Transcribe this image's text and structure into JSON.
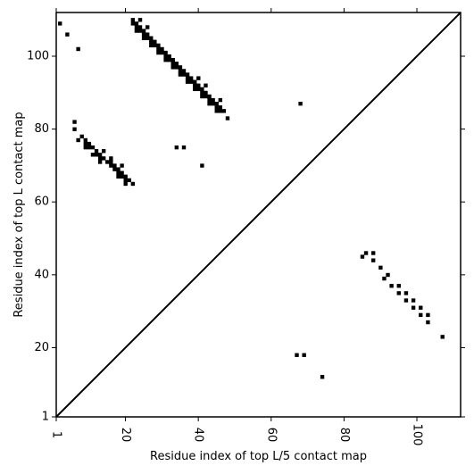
{
  "chart_data": {
    "type": "heatmap",
    "xlabel": "Residue index of top L/5 contact map",
    "ylabel": "Residue index of top L contact map",
    "xlim": [
      1,
      112
    ],
    "ylim": [
      1,
      112
    ],
    "xticks": [
      1,
      20,
      40,
      60,
      80,
      100
    ],
    "yticks": [
      1,
      20,
      40,
      60,
      80,
      100
    ],
    "diagonal": true,
    "upper_cells": [
      [
        2,
        109
      ],
      [
        4,
        106
      ],
      [
        7,
        102
      ],
      [
        22,
        110
      ],
      [
        22,
        109
      ],
      [
        23,
        109
      ],
      [
        23,
        108
      ],
      [
        24,
        110
      ],
      [
        24,
        108
      ],
      [
        24,
        107
      ],
      [
        23,
        107
      ],
      [
        25,
        107
      ],
      [
        25,
        106
      ],
      [
        26,
        108
      ],
      [
        26,
        106
      ],
      [
        25,
        105
      ],
      [
        26,
        105
      ],
      [
        27,
        105
      ],
      [
        27,
        104
      ],
      [
        28,
        104
      ],
      [
        27,
        103
      ],
      [
        28,
        103
      ],
      [
        29,
        103
      ],
      [
        29,
        102
      ],
      [
        30,
        102
      ],
      [
        29,
        101
      ],
      [
        30,
        101
      ],
      [
        31,
        101
      ],
      [
        31,
        100
      ],
      [
        32,
        100
      ],
      [
        31,
        99
      ],
      [
        32,
        99
      ],
      [
        33,
        99
      ],
      [
        33,
        98
      ],
      [
        34,
        98
      ],
      [
        33,
        97
      ],
      [
        34,
        97
      ],
      [
        35,
        97
      ],
      [
        35,
        96
      ],
      [
        36,
        96
      ],
      [
        35,
        95
      ],
      [
        36,
        95
      ],
      [
        37,
        95
      ],
      [
        37,
        94
      ],
      [
        38,
        94
      ],
      [
        37,
        93
      ],
      [
        38,
        93
      ],
      [
        39,
        93
      ],
      [
        39,
        92
      ],
      [
        40,
        92
      ],
      [
        39,
        91
      ],
      [
        40,
        91
      ],
      [
        40,
        94
      ],
      [
        41,
        91
      ],
      [
        41,
        90
      ],
      [
        42,
        90
      ],
      [
        41,
        89
      ],
      [
        42,
        89
      ],
      [
        42,
        92
      ],
      [
        43,
        89
      ],
      [
        43,
        88
      ],
      [
        44,
        88
      ],
      [
        43,
        87
      ],
      [
        44,
        87
      ],
      [
        45,
        87
      ],
      [
        45,
        86
      ],
      [
        46,
        86
      ],
      [
        45,
        85
      ],
      [
        46,
        85
      ],
      [
        46,
        88
      ],
      [
        47,
        85
      ],
      [
        48,
        83
      ],
      [
        68,
        87
      ],
      [
        34,
        75
      ],
      [
        36,
        75
      ],
      [
        41,
        70
      ],
      [
        6,
        82
      ],
      [
        6,
        80
      ],
      [
        7,
        77
      ],
      [
        8,
        78
      ],
      [
        9,
        77
      ],
      [
        9,
        76
      ],
      [
        9,
        75
      ],
      [
        10,
        76
      ],
      [
        10,
        75
      ],
      [
        11,
        75
      ],
      [
        11,
        73
      ],
      [
        12,
        74
      ],
      [
        12,
        73
      ],
      [
        13,
        73
      ],
      [
        13,
        72
      ],
      [
        13,
        71
      ],
      [
        14,
        74
      ],
      [
        14,
        72
      ],
      [
        15,
        71
      ],
      [
        16,
        72
      ],
      [
        16,
        71
      ],
      [
        16,
        70
      ],
      [
        17,
        70
      ],
      [
        17,
        69
      ],
      [
        18,
        69
      ],
      [
        18,
        68
      ],
      [
        18,
        67
      ],
      [
        19,
        70
      ],
      [
        19,
        68
      ],
      [
        19,
        67
      ],
      [
        20,
        67
      ],
      [
        20,
        66
      ],
      [
        20,
        65
      ],
      [
        21,
        66
      ],
      [
        22,
        65
      ]
    ],
    "lower_cells": [
      [
        85,
        45
      ],
      [
        86,
        46
      ],
      [
        88,
        46
      ],
      [
        88,
        44
      ],
      [
        90,
        42
      ],
      [
        91,
        39
      ],
      [
        92,
        40
      ],
      [
        93,
        37
      ],
      [
        95,
        37
      ],
      [
        95,
        35
      ],
      [
        97,
        35
      ],
      [
        97,
        33
      ],
      [
        99,
        33
      ],
      [
        99,
        31
      ],
      [
        101,
        31
      ],
      [
        101,
        29
      ],
      [
        103,
        29
      ],
      [
        103,
        27
      ],
      [
        107,
        23
      ],
      [
        67,
        18
      ],
      [
        69,
        18
      ],
      [
        74,
        12
      ]
    ]
  }
}
